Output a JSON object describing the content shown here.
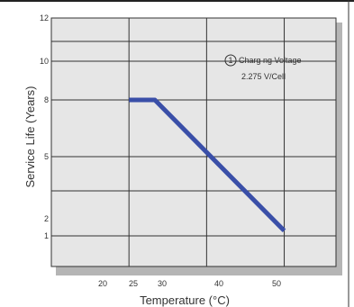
{
  "chart_data": {
    "type": "line",
    "title": "",
    "xlabel": "Temperature (°C)",
    "ylabel": "Service Life (Years)",
    "x_ticks": [
      "20",
      "25",
      "30",
      "40",
      "50"
    ],
    "y_ticks": [
      "1",
      "2",
      "5",
      "8",
      "10",
      "12"
    ],
    "xlim": [
      5,
      60
    ],
    "y_range_labels": [
      "1",
      "12"
    ],
    "grid": true,
    "series": [
      {
        "name": "",
        "x": [
          20,
          25,
          50
        ],
        "y": [
          8,
          8,
          1.3
        ],
        "color": "#3a4fa8"
      }
    ],
    "annotation": {
      "marker": "1",
      "line1": "Charg ng Voltage",
      "line2": "2.275 V/Cell"
    }
  },
  "colors": {
    "plot_background": "#e6e6e6",
    "shadow": "#b5b5b5",
    "grid": "#333333",
    "line": "#3a4fa8"
  }
}
